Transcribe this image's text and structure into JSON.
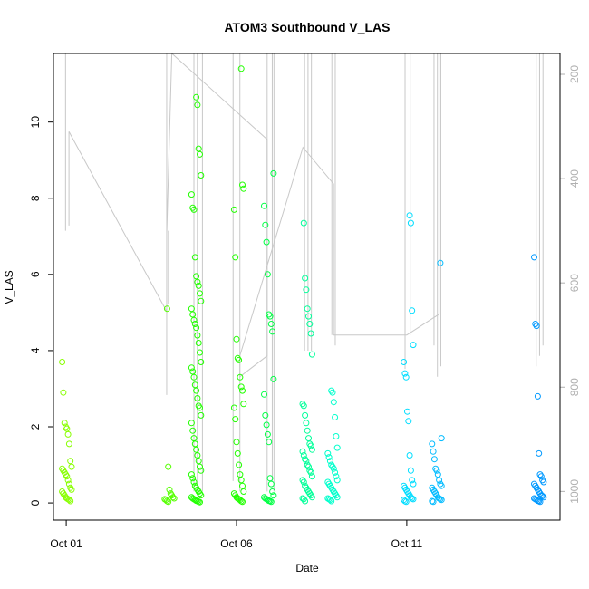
{
  "chart_data": {
    "type": "scatter",
    "title": "ATOM3 Southbound V_LAS",
    "xlabel": "Date",
    "ylabel": "V_LAS",
    "x_ticks": [
      {
        "day": 1,
        "label": "Oct 01"
      },
      {
        "day": 6,
        "label": "Oct 06"
      },
      {
        "day": 11,
        "label": "Oct 11"
      }
    ],
    "xlim": [
      "2023-09-30T15:00",
      "2023-10-15T12:00"
    ],
    "y_ticks": [
      0,
      2,
      4,
      6,
      8,
      10
    ],
    "ylim": [
      -0.45,
      11.8
    ],
    "y2_ticks": [
      200,
      400,
      600,
      800,
      1000
    ],
    "y2lim": [
      1055,
      160
    ],
    "grid": false,
    "legend": "none",
    "marker": "open-circle",
    "point_colors": [
      "#88ff00",
      "#55ff00",
      "#22ff00",
      "#00ff44",
      "#00ff99",
      "#00ffcc",
      "#00ddff",
      "#00bbff",
      "#0099ff"
    ],
    "line_color": "#c8c8c8",
    "point_groups": [
      {
        "day": 1.02,
        "color_index": 0,
        "values": [
          3.7,
          2.9,
          2.1,
          2.0,
          1.95,
          1.8,
          1.55,
          1.1,
          0.95,
          0.9,
          0.85,
          0.8,
          0.75,
          0.7,
          0.6,
          0.5,
          0.4,
          0.35,
          0.3,
          0.25,
          0.2,
          0.15,
          0.12,
          0.1,
          0.08,
          0.05
        ]
      },
      {
        "day": 4.03,
        "color_index": 1,
        "values": [
          5.1,
          0.95,
          0.35,
          0.25,
          0.2,
          0.15,
          0.12,
          0.1,
          0.08,
          0.05,
          0.03
        ]
      },
      {
        "day": 4.82,
        "color_index": 2,
        "values": [
          10.65,
          10.45,
          9.3,
          9.15,
          8.6,
          8.1,
          7.75,
          7.7,
          6.45,
          5.95,
          5.8,
          5.7,
          5.5,
          5.3,
          5.1,
          4.95,
          4.8,
          4.7,
          4.6,
          4.4,
          4.2,
          3.95,
          3.7,
          3.55,
          3.45,
          3.3,
          3.1,
          2.95,
          2.75,
          2.55,
          2.5,
          2.3,
          2.1,
          1.9,
          1.7,
          1.55,
          1.4,
          1.25,
          1.1,
          0.95,
          0.85,
          0.75,
          0.65,
          0.55,
          0.45,
          0.4,
          0.35,
          0.3,
          0.25,
          0.2,
          0.15,
          0.12,
          0.1,
          0.08,
          0.06,
          0.05,
          0.03,
          0.02
        ]
      },
      {
        "day": 6.07,
        "color_index": 2,
        "values": [
          11.4,
          8.35,
          8.25,
          7.7,
          6.45,
          4.3,
          3.8,
          3.75,
          3.3,
          3.05,
          2.95,
          2.6,
          2.5,
          2.2,
          1.6,
          1.3,
          1.0,
          0.75,
          0.6,
          0.45,
          0.3,
          0.25,
          0.2,
          0.15,
          0.12,
          0.1,
          0.08,
          0.05,
          0.03
        ]
      },
      {
        "day": 6.95,
        "color_index": 3,
        "values": [
          8.65,
          7.8,
          7.3,
          6.85,
          6.0,
          4.95,
          4.9,
          4.7,
          4.5,
          3.25,
          2.85,
          2.3,
          2.05,
          1.8,
          1.6,
          0.65,
          0.5,
          0.3,
          0.2,
          0.15,
          0.12,
          0.1,
          0.08,
          0.06,
          0.05,
          0.03
        ]
      },
      {
        "day": 8.08,
        "color_index": 4,
        "values": [
          7.35,
          5.9,
          5.6,
          5.1,
          4.9,
          4.7,
          4.45,
          3.9,
          2.6,
          2.55,
          2.3,
          2.1,
          1.9,
          1.7,
          1.55,
          1.5,
          1.4,
          1.35,
          1.25,
          1.15,
          1.1,
          1.0,
          0.95,
          0.85,
          0.8,
          0.7,
          0.6,
          0.55,
          0.45,
          0.4,
          0.35,
          0.3,
          0.25,
          0.2,
          0.15,
          0.12,
          0.1,
          0.05
        ]
      },
      {
        "day": 8.82,
        "color_index": 5,
        "values": [
          2.95,
          2.9,
          2.65,
          2.25,
          1.75,
          1.45,
          1.3,
          1.2,
          1.1,
          1.0,
          0.95,
          0.9,
          0.8,
          0.7,
          0.6,
          0.55,
          0.5,
          0.45,
          0.4,
          0.35,
          0.3,
          0.25,
          0.2,
          0.15,
          0.12,
          0.1,
          0.08,
          0.05
        ]
      },
      {
        "day": 11.05,
        "color_index": 6,
        "values": [
          7.55,
          7.35,
          5.05,
          4.15,
          3.7,
          3.4,
          3.3,
          2.4,
          2.15,
          1.25,
          0.85,
          0.6,
          0.5,
          0.45,
          0.4,
          0.35,
          0.3,
          0.25,
          0.2,
          0.15,
          0.12,
          0.1,
          0.08,
          0.05,
          0.03
        ]
      },
      {
        "day": 11.88,
        "color_index": 7,
        "values": [
          6.3,
          1.7,
          1.55,
          1.35,
          1.15,
          0.9,
          0.85,
          0.75,
          0.6,
          0.5,
          0.45,
          0.4,
          0.35,
          0.3,
          0.25,
          0.2,
          0.15,
          0.12,
          0.1,
          0.08,
          0.05,
          0.03
        ]
      },
      {
        "day": 14.88,
        "color_index": 8,
        "values": [
          6.45,
          4.7,
          4.65,
          2.8,
          1.3,
          0.75,
          0.7,
          0.6,
          0.55,
          0.5,
          0.45,
          0.4,
          0.35,
          0.3,
          0.25,
          0.2,
          0.18,
          0.15,
          0.12,
          0.1,
          0.08,
          0.06,
          0.05,
          0.03
        ]
      }
    ],
    "secondary_series_values": [
      {
        "day": 0.98,
        "values": [
          160,
          500
        ]
      },
      {
        "day": 1.08,
        "values": [
          310,
          490
        ]
      },
      {
        "day": 1.08,
        "values": [
          310,
          310
        ]
      },
      {
        "day": 3.95,
        "values": [
          160,
          815
        ]
      },
      {
        "day": 4.0,
        "values": [
          500,
          640
        ]
      },
      {
        "day": 4.75,
        "values": [
          160,
          1000
        ]
      },
      {
        "day": 4.85,
        "values": [
          160,
          1000
        ]
      },
      {
        "day": 5.0,
        "values": [
          160,
          1000
        ]
      },
      {
        "day": 5.9,
        "values": [
          160,
          980
        ]
      },
      {
        "day": 6.1,
        "values": [
          160,
          1000
        ]
      },
      {
        "day": 6.9,
        "values": [
          160,
          1000
        ]
      },
      {
        "day": 7.05,
        "values": [
          160,
          980
        ]
      },
      {
        "day": 7.1,
        "values": [
          160,
          1000
        ]
      },
      {
        "day": 8.0,
        "values": [
          160,
          730
        ]
      },
      {
        "day": 8.1,
        "values": [
          160,
          730
        ]
      },
      {
        "day": 8.2,
        "values": [
          160,
          730
        ]
      },
      {
        "day": 8.8,
        "values": [
          160,
          700
        ]
      },
      {
        "day": 8.9,
        "values": [
          160,
          720
        ]
      },
      {
        "day": 10.95,
        "values": [
          160,
          765
        ]
      },
      {
        "day": 11.1,
        "values": [
          160,
          700
        ]
      },
      {
        "day": 11.8,
        "values": [
          160,
          720
        ]
      },
      {
        "day": 11.9,
        "values": [
          160,
          780
        ]
      },
      {
        "day": 12.0,
        "values": [
          160,
          760
        ]
      },
      {
        "day": 14.8,
        "values": [
          160,
          760
        ]
      },
      {
        "day": 14.9,
        "values": [
          160,
          740
        ]
      },
      {
        "day": 15.0,
        "values": [
          160,
          720
        ]
      }
    ],
    "secondary_series_path": [
      {
        "day": 1.08,
        "value": 310
      },
      {
        "day": 3.95,
        "value": 655
      },
      {
        "day": 3.95,
        "value": 505
      },
      {
        "day": 4.1,
        "value": 160
      },
      {
        "day": 6.9,
        "value": 325
      },
      {
        "day": 6.9,
        "value": 740
      },
      {
        "day": 6.1,
        "value": 780
      },
      {
        "day": 6.1,
        "value": 740
      },
      {
        "day": 7.95,
        "value": 340
      },
      {
        "day": 8.85,
        "value": 410
      },
      {
        "day": 8.85,
        "value": 700
      },
      {
        "day": 11.0,
        "value": 700
      },
      {
        "day": 11.95,
        "value": 660
      },
      {
        "day": 11.95,
        "value": 160
      }
    ]
  }
}
